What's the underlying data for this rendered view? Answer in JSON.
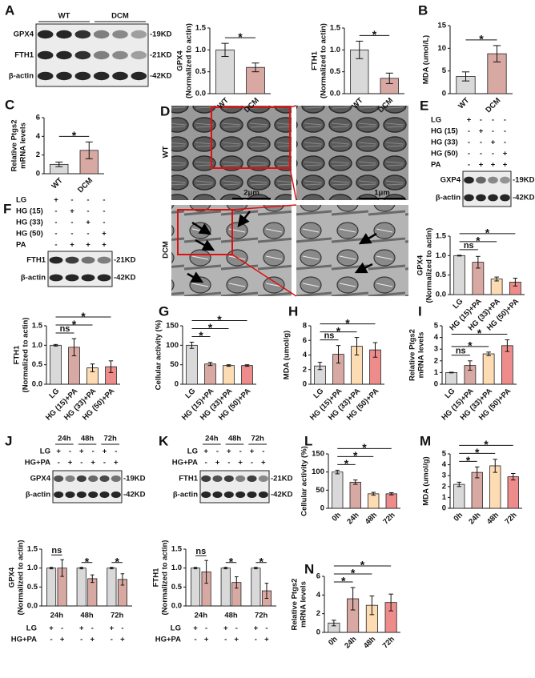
{
  "panel_labels": [
    "A",
    "B",
    "C",
    "D",
    "E",
    "F",
    "G",
    "H",
    "I",
    "J",
    "K",
    "L",
    "M",
    "N"
  ],
  "micrographs": {
    "rows": [
      "WT",
      "DCM"
    ],
    "scale_bars": [
      "2μm",
      "1μm"
    ]
  },
  "blots": [
    {
      "groups": [
        "WT",
        "DCM"
      ],
      "bands": [
        {
          "protein": "GPX4",
          "size": "-19KD"
        },
        {
          "protein": "FTH1",
          "size": "-21KD"
        },
        {
          "protein": "β-actin",
          "size": "-42KD"
        }
      ]
    },
    {
      "treatments": [
        {
          "name": "LG",
          "signs": [
            "+",
            "-",
            "-",
            "-"
          ]
        },
        {
          "name": "HG (15)",
          "signs": [
            "-",
            "+",
            "-",
            "-"
          ]
        },
        {
          "name": "HG (33)",
          "signs": [
            "-",
            "-",
            "+",
            "-"
          ]
        },
        {
          "name": "HG (50)",
          "signs": [
            "-",
            "-",
            "-",
            "+"
          ]
        },
        {
          "name": "PA",
          "signs": [
            "-",
            "+",
            "+",
            "+"
          ]
        }
      ],
      "bands": [
        {
          "protein": "GXP4",
          "size": "-19KD"
        },
        {
          "protein": "β-actin",
          "size": "-42KD"
        }
      ]
    },
    {
      "treatments": [
        {
          "name": "LG",
          "signs": [
            "+",
            "-",
            "-",
            "-"
          ]
        },
        {
          "name": "HG (15)",
          "signs": [
            "-",
            "+",
            "-",
            "-"
          ]
        },
        {
          "name": "HG (33)",
          "signs": [
            "-",
            "-",
            "+",
            "-"
          ]
        },
        {
          "name": "HG (50)",
          "signs": [
            "-",
            "-",
            "-",
            "+"
          ]
        },
        {
          "name": "PA",
          "signs": [
            "-",
            "+",
            "+",
            "+"
          ]
        }
      ],
      "bands": [
        {
          "protein": "FTH1",
          "size": "-21KD"
        },
        {
          "protein": "β-actin",
          "size": "-42KD"
        }
      ]
    },
    {
      "groups": [
        "24h",
        "48h",
        "72h"
      ],
      "treatments": [
        {
          "name": "LG",
          "signs": [
            "+",
            "-",
            "+",
            "-",
            "+",
            "-"
          ]
        },
        {
          "name": "HG+PA",
          "signs": [
            "-",
            "+",
            "-",
            "+",
            "-",
            "+"
          ]
        }
      ],
      "bands": [
        {
          "protein": "GPX4",
          "size": "-19KD"
        },
        {
          "protein": "β-actin",
          "size": "-42KD"
        }
      ]
    },
    {
      "groups": [
        "24h",
        "48h",
        "72h"
      ],
      "treatments": [
        {
          "name": "LG",
          "signs": [
            "+",
            "-",
            "+",
            "-",
            "+",
            "-"
          ]
        },
        {
          "name": "HG+PA",
          "signs": [
            "-",
            "+",
            "-",
            "+",
            "-",
            "+"
          ]
        }
      ],
      "bands": [
        {
          "protein": "FTH1",
          "size": "-21KD"
        },
        {
          "protein": "β-actin",
          "size": "-42KD"
        }
      ]
    }
  ],
  "chart_data": [
    {
      "type": "bar",
      "ylabel": [
        "GPX4",
        "(Normalized to actin)"
      ],
      "categories": [
        "WT",
        "DCM"
      ],
      "values": [
        1.0,
        0.6
      ],
      "errors": [
        0.15,
        0.1
      ],
      "colors": [
        "#d9d9d9",
        "#d8a8a2"
      ],
      "ylim": [
        0,
        1.5
      ],
      "yticks": [
        {
          "value": 0,
          "label": "0.0"
        },
        {
          "value": 0.5,
          "label": "0.5"
        },
        {
          "value": 1,
          "label": "1.0"
        },
        {
          "value": 1.5,
          "label": "1.5"
        }
      ],
      "significance": [
        {
          "between": [
            "WT",
            "DCM"
          ],
          "label": "*"
        }
      ]
    },
    {
      "type": "bar",
      "ylabel": [
        "FTH1",
        "(Normalized to actin)"
      ],
      "categories": [
        "WT",
        "DCM"
      ],
      "values": [
        1.0,
        0.35
      ],
      "errors": [
        0.2,
        0.12
      ],
      "colors": [
        "#d9d9d9",
        "#d8a8a2"
      ],
      "ylim": [
        0,
        1.5
      ],
      "yticks": [
        {
          "value": 0,
          "label": "0.0"
        },
        {
          "value": 0.5,
          "label": "0.5"
        },
        {
          "value": 1,
          "label": "1.0"
        },
        {
          "value": 1.5,
          "label": "1.5"
        }
      ],
      "significance": [
        {
          "between": [
            "WT",
            "DCM"
          ],
          "label": "*"
        }
      ]
    },
    {
      "type": "bar",
      "ylabel": [
        "MDA (umol/L)"
      ],
      "categories": [
        "WT",
        "DCM"
      ],
      "values": [
        3.8,
        8.8
      ],
      "errors": [
        1.0,
        1.8
      ],
      "colors": [
        "#d9d9d9",
        "#d8a8a2"
      ],
      "ylim": [
        0,
        15
      ],
      "yticks": [
        0,
        5,
        10,
        15
      ],
      "significance": [
        {
          "between": [
            "WT",
            "DCM"
          ],
          "label": "*"
        }
      ]
    },
    {
      "type": "bar",
      "ylabel": [
        "Relative Ptgs2",
        "mRNA levels"
      ],
      "categories": [
        "WT",
        "DCM"
      ],
      "values": [
        1.0,
        2.5
      ],
      "errors": [
        0.25,
        0.9
      ],
      "colors": [
        "#d9d9d9",
        "#d8a8a2"
      ],
      "ylim": [
        0,
        6
      ],
      "yticks": [
        0,
        2,
        4,
        6
      ],
      "significance": [
        {
          "between": [
            "WT",
            "DCM"
          ],
          "label": "*"
        }
      ]
    },
    {
      "type": "bar",
      "ylabel": [
        "GPX4",
        "(Normalized to actin)"
      ],
      "categories": [
        "LG",
        "HG (15)+PA",
        "HG (33)+PA",
        "HG (50)+PA"
      ],
      "values": [
        1.0,
        0.83,
        0.4,
        0.32
      ],
      "errors": [
        0.01,
        0.15,
        0.05,
        0.1
      ],
      "colors": [
        "#d9d9d9",
        "#d8a8a2",
        "#fddcb3",
        "#ee8c8c"
      ],
      "ylim": [
        0,
        1.5
      ],
      "yticks": [
        {
          "value": 0,
          "label": "0.0"
        },
        {
          "value": 0.5,
          "label": "0.5"
        },
        {
          "value": 1,
          "label": "1.0"
        },
        {
          "value": 1.5,
          "label": "1.5"
        }
      ],
      "significance": [
        {
          "between": [
            "LG",
            "HG (15)+PA"
          ],
          "label": "ns"
        },
        {
          "between": [
            "LG",
            "HG (33)+PA"
          ],
          "label": "*"
        },
        {
          "between": [
            "LG",
            "HG (50)+PA"
          ],
          "label": "*"
        }
      ]
    },
    {
      "type": "bar",
      "ylabel": [
        "FTH1",
        "(Normalized to actin)"
      ],
      "categories": [
        "LG",
        "HG (15)+PA",
        "HG (33)+PA",
        "HG (50)+PA"
      ],
      "values": [
        1.0,
        0.95,
        0.42,
        0.45
      ],
      "errors": [
        0.02,
        0.22,
        0.1,
        0.15
      ],
      "colors": [
        "#d9d9d9",
        "#d8a8a2",
        "#fddcb3",
        "#ee8c8c"
      ],
      "ylim": [
        0,
        1.5
      ],
      "yticks": [
        {
          "value": 0,
          "label": "0.0"
        },
        {
          "value": 0.5,
          "label": "0.5"
        },
        {
          "value": 1,
          "label": "1.0"
        },
        {
          "value": 1.5,
          "label": "1.5"
        }
      ],
      "significance": [
        {
          "between": [
            "LG",
            "HG (15)+PA"
          ],
          "label": "ns"
        },
        {
          "between": [
            "LG",
            "HG (33)+PA"
          ],
          "label": "*"
        },
        {
          "between": [
            "LG",
            "HG (50)+PA"
          ],
          "label": "*"
        }
      ]
    },
    {
      "type": "bar",
      "ylabel": [
        "Cellular activity (%)"
      ],
      "categories": [
        "LG",
        "HG (15)+PA",
        "HG (33)+PA",
        "HG (50)+PA"
      ],
      "values": [
        100,
        52,
        48,
        48
      ],
      "errors": [
        8,
        4,
        2,
        2
      ],
      "colors": [
        "#d9d9d9",
        "#d8a8a2",
        "#fddcb3",
        "#ee8c8c"
      ],
      "ylim": [
        0,
        150
      ],
      "yticks": [
        0,
        50,
        100,
        150
      ],
      "significance": [
        {
          "between": [
            "LG",
            "HG (15)+PA"
          ],
          "label": "*"
        },
        {
          "between": [
            "LG",
            "HG (33)+PA"
          ],
          "label": "*"
        },
        {
          "between": [
            "LG",
            "HG (50)+PA"
          ],
          "label": "*"
        }
      ]
    },
    {
      "type": "bar",
      "ylabel": [
        "MDA (umol/g)"
      ],
      "categories": [
        "LG",
        "HG (15)+PA",
        "HG (33)+PA",
        "HG (50)+PA"
      ],
      "values": [
        2.5,
        4.1,
        5.2,
        4.7
      ],
      "errors": [
        0.5,
        1.2,
        1.2,
        1.0
      ],
      "colors": [
        "#d9d9d9",
        "#d8a8a2",
        "#fddcb3",
        "#ee8c8c"
      ],
      "ylim": [
        0,
        8
      ],
      "yticks": [
        0,
        2,
        4,
        6,
        8
      ],
      "significance": [
        {
          "between": [
            "LG",
            "HG (15)+PA"
          ],
          "label": "ns"
        },
        {
          "between": [
            "LG",
            "HG (33)+PA"
          ],
          "label": "*"
        },
        {
          "between": [
            "LG",
            "HG (50)+PA"
          ],
          "label": "*"
        }
      ]
    },
    {
      "type": "bar",
      "ylabel": [
        "Relative Ptgs2",
        "mRNA levels"
      ],
      "categories": [
        "LG",
        "HG (15)+PA",
        "HG (33)+PA",
        "HG (50)+PA"
      ],
      "values": [
        1.0,
        1.6,
        2.6,
        3.3
      ],
      "errors": [
        0.03,
        0.4,
        0.15,
        0.5
      ],
      "colors": [
        "#d9d9d9",
        "#d8a8a2",
        "#fddcb3",
        "#ee8c8c"
      ],
      "ylim": [
        0,
        5
      ],
      "yticks": [
        0,
        1,
        2,
        3,
        4,
        5
      ],
      "significance": [
        {
          "between": [
            "LG",
            "HG (15)+PA"
          ],
          "label": "ns"
        },
        {
          "between": [
            "LG",
            "HG (33)+PA"
          ],
          "label": "*"
        },
        {
          "between": [
            "LG",
            "HG (50)+PA"
          ],
          "label": "*"
        }
      ]
    },
    {
      "type": "bar",
      "ylabel": [
        "GPX4",
        "(Normalized to actin)"
      ],
      "categories": [
        "24h",
        "48h",
        "72h"
      ],
      "series": [
        {
          "name": "LG",
          "color": "#d9d9d9",
          "values": [
            1,
            1,
            1
          ],
          "errors": [
            0.02,
            0.02,
            0.02
          ],
          "signs": [
            "+",
            "-",
            "+",
            "-",
            "+",
            "-"
          ]
        },
        {
          "name": "HG+PA",
          "color": "#d8a8a2",
          "values": [
            1.0,
            0.72,
            0.7
          ],
          "errors": [
            0.22,
            0.1,
            0.15
          ],
          "signs": [
            "-",
            "+",
            "-",
            "+",
            "-",
            "+"
          ]
        }
      ],
      "ylim": [
        0,
        1.5
      ],
      "yticks": [
        {
          "value": 0,
          "label": "0.0"
        },
        {
          "value": 0.5,
          "label": "0.5"
        },
        {
          "value": 1,
          "label": "1.0"
        },
        {
          "value": 1.5,
          "label": "1.5"
        }
      ],
      "significance": [
        {
          "group": "24h",
          "label": "ns"
        },
        {
          "group": "48h",
          "label": "*"
        },
        {
          "group": "72h",
          "label": "*"
        }
      ]
    },
    {
      "type": "bar",
      "ylabel": [
        "FTH1",
        "(Normalized to actin)"
      ],
      "categories": [
        "24h",
        "48h",
        "72h"
      ],
      "series": [
        {
          "name": "LG",
          "color": "#d9d9d9",
          "values": [
            1,
            1,
            1
          ],
          "errors": [
            0.02,
            0.02,
            0.02
          ],
          "signs": [
            "+",
            "-",
            "+",
            "-",
            "+",
            "-"
          ]
        },
        {
          "name": "HG+PA",
          "color": "#d8a8a2",
          "values": [
            0.9,
            0.62,
            0.4
          ],
          "errors": [
            0.3,
            0.15,
            0.2
          ],
          "signs": [
            "-",
            "+",
            "-",
            "+",
            "-",
            "+"
          ]
        }
      ],
      "ylim": [
        0,
        1.5
      ],
      "yticks": [
        {
          "value": 0,
          "label": "0.0"
        },
        {
          "value": 0.5,
          "label": "0.5"
        },
        {
          "value": 1,
          "label": "1.0"
        },
        {
          "value": 1.5,
          "label": "1.5"
        }
      ],
      "significance": [
        {
          "group": "24h",
          "label": "ns"
        },
        {
          "group": "48h",
          "label": "*"
        },
        {
          "group": "72h",
          "label": "*"
        }
      ]
    },
    {
      "type": "bar",
      "ylabel": [
        "Cellular activity (%)"
      ],
      "categories": [
        "0h",
        "24h",
        "48h",
        "72h"
      ],
      "values": [
        100,
        72,
        40,
        40
      ],
      "errors": [
        5,
        6,
        4,
        3
      ],
      "colors": [
        "#d9d9d9",
        "#d8a8a2",
        "#fddcb3",
        "#ee8c8c"
      ],
      "ylim": [
        0,
        150
      ],
      "yticks": [
        0,
        50,
        100,
        150
      ],
      "significance": [
        {
          "between": [
            "0h",
            "24h"
          ],
          "label": "*"
        },
        {
          "between": [
            "0h",
            "48h"
          ],
          "label": "*"
        },
        {
          "between": [
            "0h",
            "72h"
          ],
          "label": "*"
        }
      ]
    },
    {
      "type": "bar",
      "ylabel": [
        "MDA (umol/g)"
      ],
      "categories": [
        "0h",
        "24h",
        "48h",
        "72h"
      ],
      "values": [
        2.2,
        3.3,
        3.9,
        2.9
      ],
      "errors": [
        0.2,
        0.5,
        0.6,
        0.3
      ],
      "colors": [
        "#d9d9d9",
        "#d8a8a2",
        "#fddcb3",
        "#ee8c8c"
      ],
      "ylim": [
        0,
        5
      ],
      "yticks": [
        0,
        1,
        2,
        3,
        4,
        5
      ],
      "significance": [
        {
          "between": [
            "0h",
            "24h"
          ],
          "label": "*"
        },
        {
          "between": [
            "0h",
            "48h"
          ],
          "label": "*"
        },
        {
          "between": [
            "0h",
            "72h"
          ],
          "label": "*"
        }
      ]
    },
    {
      "type": "bar",
      "ylabel": [
        "Relative Ptgs2",
        "mRNA levels"
      ],
      "categories": [
        "0h",
        "24h",
        "48h",
        "72h"
      ],
      "values": [
        1.0,
        3.6,
        2.9,
        3.2
      ],
      "errors": [
        0.3,
        1.2,
        1.0,
        0.9
      ],
      "colors": [
        "#d9d9d9",
        "#d8a8a2",
        "#fddcb3",
        "#ee8c8c"
      ],
      "ylim": [
        0,
        6
      ],
      "yticks": [
        0,
        2,
        4,
        6
      ],
      "significance": [
        {
          "between": [
            "0h",
            "24h"
          ],
          "label": "*"
        },
        {
          "between": [
            "0h",
            "48h"
          ],
          "label": "*"
        },
        {
          "between": [
            "0h",
            "72h"
          ],
          "label": "*"
        }
      ]
    }
  ]
}
